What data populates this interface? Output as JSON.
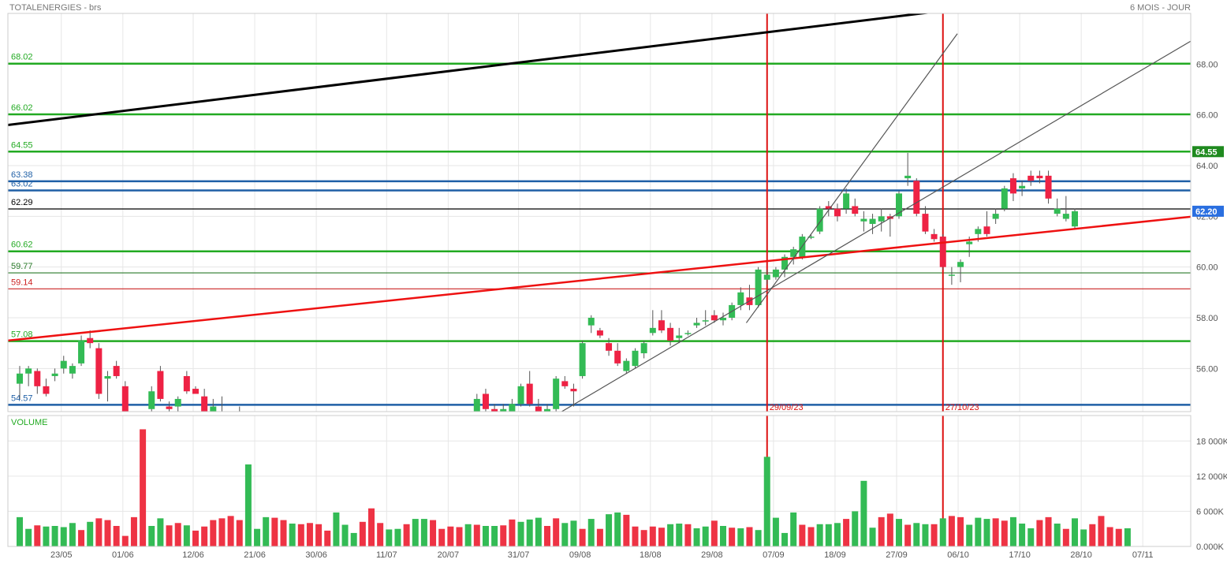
{
  "header": {
    "title": "TOTALENERGIES - brs",
    "period": "6 MOIS - JOUR"
  },
  "volume_panel": {
    "label": "VOLUME"
  },
  "chart_data": [
    {
      "type": "candlestick",
      "title": "TOTALENERGIES - brs",
      "ylim": [
        54.3,
        70.0
      ],
      "y_ticks": [
        "56.00",
        "58.00",
        "60.00",
        "62.00",
        "64.00",
        "66.00",
        "68.00"
      ],
      "x_ticks": [
        "23/05",
        "01/06",
        "12/06",
        "21/06",
        "30/06",
        "11/07",
        "20/07",
        "31/07",
        "09/08",
        "18/08",
        "29/08",
        "07/09",
        "18/09",
        "27/09",
        "06/10",
        "17/10",
        "28/10",
        "07/11"
      ],
      "current_price": "62.20",
      "current_price_value": 62.2,
      "highlight_price": "64.55",
      "highlight_price_value": 64.55,
      "levels": [
        {
          "label": "68.02",
          "value": 68.02,
          "color": "#22aa22"
        },
        {
          "label": "66.02",
          "value": 66.02,
          "color": "#22aa22"
        },
        {
          "label": "64.55",
          "value": 64.55,
          "color": "#22aa22"
        },
        {
          "label": "63.38",
          "value": 63.38,
          "color": "#1f5fa6"
        },
        {
          "label": "63.02",
          "value": 63.02,
          "color": "#1f5fa6"
        },
        {
          "label": "62.29",
          "value": 62.29,
          "color": "#000000"
        },
        {
          "label": "60.62",
          "value": 60.62,
          "color": "#22aa22"
        },
        {
          "label": "59.77",
          "value": 59.77,
          "color": "#2a7a2a"
        },
        {
          "label": "59.14",
          "value": 59.14,
          "color": "#cc2222"
        },
        {
          "label": "57.08",
          "value": 57.08,
          "color": "#22aa22"
        },
        {
          "label": "54.57",
          "value": 54.57,
          "color": "#1f5fa6"
        }
      ],
      "vertical_markers": [
        {
          "label": "29/09/23",
          "index": 85
        },
        {
          "label": "27/10/23",
          "index": 105
        }
      ],
      "trendlines": [
        {
          "color": "#000000",
          "width": 3,
          "from": [
            -1,
            65.6
          ],
          "to": [
            110,
            70.3
          ]
        },
        {
          "color": "#ee1111",
          "width": 2.5,
          "from": [
            -1,
            57.1
          ],
          "to": [
            134,
            62.0
          ]
        },
        {
          "color": "#555555",
          "width": 1.2,
          "from": [
            62,
            54.3
          ],
          "to": [
            134,
            69.0
          ]
        },
        {
          "color": "#555555",
          "width": 1.2,
          "from": [
            83,
            57.8
          ],
          "to": [
            107,
            69.2
          ]
        }
      ],
      "candles": [
        [
          0,
          55.4,
          56.1,
          54.8,
          55.8
        ],
        [
          1,
          55.8,
          56.1,
          55.3,
          56.0
        ],
        [
          2,
          55.9,
          56.0,
          55.0,
          55.3
        ],
        [
          3,
          55.3,
          55.6,
          54.9,
          55.0
        ],
        [
          4,
          55.7,
          56.0,
          55.5,
          55.8
        ],
        [
          5,
          56.0,
          56.5,
          55.8,
          56.3
        ],
        [
          6,
          55.8,
          56.2,
          55.6,
          56.1
        ],
        [
          7,
          56.2,
          57.3,
          56.1,
          57.1
        ],
        [
          8,
          57.2,
          57.5,
          56.8,
          57.0
        ],
        [
          9,
          56.8,
          57.0,
          54.8,
          55.0
        ],
        [
          10,
          55.6,
          55.9,
          54.7,
          55.7
        ],
        [
          11,
          56.1,
          56.3,
          55.6,
          55.7
        ],
        [
          12,
          55.3,
          55.5,
          53.8,
          54.0
        ],
        [
          15,
          54.4,
          55.3,
          54.3,
          55.1
        ],
        [
          16,
          55.9,
          56.1,
          54.7,
          54.8
        ],
        [
          17,
          54.5,
          54.7,
          54.3,
          54.4
        ],
        [
          18,
          54.5,
          54.9,
          54.2,
          54.8
        ],
        [
          19,
          55.7,
          55.9,
          55.0,
          55.1
        ],
        [
          20,
          55.2,
          55.3,
          55.0,
          55.0
        ],
        [
          21,
          54.9,
          55.2,
          54.2,
          54.3
        ],
        [
          22,
          54.3,
          54.8,
          54.1,
          54.5
        ],
        [
          23,
          54.2,
          54.9,
          54.0,
          54.3
        ],
        [
          25,
          54.0,
          54.5,
          53.9,
          54.2
        ],
        [
          52,
          54.3,
          55.0,
          54.2,
          54.8
        ],
        [
          53,
          55.0,
          55.2,
          54.3,
          54.4
        ],
        [
          54,
          54.4,
          54.6,
          54.2,
          54.3
        ],
        [
          55,
          54.3,
          54.6,
          54.2,
          54.4
        ],
        [
          56,
          54.3,
          54.8,
          54.1,
          54.6
        ],
        [
          57,
          54.6,
          55.4,
          54.5,
          55.3
        ],
        [
          58,
          55.4,
          55.9,
          54.5,
          54.6
        ],
        [
          59,
          54.5,
          54.8,
          54.1,
          54.3
        ],
        [
          60,
          54.3,
          54.6,
          54.1,
          54.4
        ],
        [
          61,
          54.4,
          55.7,
          54.3,
          55.6
        ],
        [
          62,
          55.5,
          55.7,
          55.2,
          55.3
        ],
        [
          63,
          55.2,
          55.4,
          54.5,
          55.1
        ],
        [
          64,
          55.7,
          57.1,
          55.6,
          57.0
        ],
        [
          65,
          57.7,
          58.1,
          57.4,
          58.0
        ],
        [
          66,
          57.5,
          57.6,
          57.2,
          57.3
        ],
        [
          67,
          57.0,
          57.2,
          56.5,
          56.7
        ],
        [
          68,
          56.7,
          57.0,
          56.1,
          56.2
        ],
        [
          69,
          55.9,
          56.4,
          55.8,
          56.3
        ],
        [
          70,
          56.1,
          56.8,
          56.0,
          56.7
        ],
        [
          71,
          56.6,
          57.1,
          56.4,
          57.0
        ],
        [
          72,
          57.4,
          58.3,
          57.3,
          57.6
        ],
        [
          73,
          57.9,
          58.3,
          57.4,
          57.5
        ],
        [
          74,
          57.6,
          57.8,
          56.9,
          57.1
        ],
        [
          75,
          57.2,
          57.6,
          57.0,
          57.3
        ],
        [
          76,
          57.4,
          57.5,
          57.3,
          57.4
        ],
        [
          77,
          57.7,
          58.0,
          57.6,
          57.8
        ],
        [
          78,
          57.9,
          58.3,
          57.7,
          57.9
        ],
        [
          79,
          58.1,
          58.3,
          57.8,
          57.9
        ],
        [
          80,
          57.9,
          58.2,
          57.7,
          58.0
        ],
        [
          81,
          58.0,
          58.6,
          57.9,
          58.5
        ],
        [
          82,
          58.5,
          59.2,
          58.3,
          59.0
        ],
        [
          83,
          58.8,
          59.3,
          58.3,
          58.5
        ],
        [
          84,
          58.5,
          60.0,
          58.4,
          59.9
        ],
        [
          85,
          59.5,
          59.9,
          59.3,
          59.7
        ],
        [
          86,
          59.6,
          60.0,
          59.5,
          59.9
        ],
        [
          87,
          59.9,
          60.5,
          59.6,
          60.4
        ],
        [
          88,
          60.4,
          60.8,
          60.1,
          60.7
        ],
        [
          89,
          60.4,
          61.3,
          60.3,
          61.2
        ],
        [
          90,
          61.2,
          61.3,
          61.1,
          61.2
        ],
        [
          91,
          61.4,
          62.4,
          61.3,
          62.3
        ],
        [
          92,
          62.4,
          62.6,
          62.0,
          62.3
        ],
        [
          93,
          62.3,
          62.5,
          61.8,
          62.0
        ],
        [
          94,
          62.3,
          63.1,
          62.1,
          62.9
        ],
        [
          95,
          62.4,
          62.7,
          62.0,
          62.1
        ],
        [
          96,
          61.8,
          62.2,
          61.4,
          61.9
        ],
        [
          97,
          61.7,
          62.1,
          61.3,
          61.9
        ],
        [
          98,
          61.8,
          62.3,
          61.4,
          62.0
        ],
        [
          99,
          62.0,
          62.1,
          61.2,
          61.9
        ],
        [
          100,
          62.0,
          63.0,
          61.9,
          62.9
        ],
        [
          101,
          63.5,
          64.5,
          63.2,
          63.6
        ],
        [
          102,
          63.4,
          63.5,
          62.0,
          62.1
        ],
        [
          103,
          62.1,
          62.4,
          61.3,
          61.4
        ],
        [
          104,
          61.3,
          61.5,
          61.0,
          61.1
        ],
        [
          105,
          61.2,
          61.3,
          59.9,
          60.0
        ],
        [
          106,
          59.7,
          60.0,
          59.3,
          59.7
        ],
        [
          107,
          60.0,
          60.3,
          59.4,
          60.2
        ],
        [
          108,
          60.9,
          61.2,
          60.4,
          61.0
        ],
        [
          109,
          61.3,
          61.6,
          61.0,
          61.5
        ],
        [
          110,
          61.6,
          62.2,
          61.2,
          61.3
        ],
        [
          111,
          61.9,
          62.3,
          61.7,
          62.1
        ],
        [
          112,
          62.3,
          63.2,
          62.2,
          63.1
        ],
        [
          113,
          63.5,
          63.7,
          62.6,
          62.9
        ],
        [
          114,
          63.1,
          63.4,
          62.8,
          63.2
        ],
        [
          115,
          63.6,
          63.8,
          63.2,
          63.4
        ],
        [
          116,
          63.6,
          63.8,
          63.3,
          63.5
        ],
        [
          117,
          63.6,
          63.8,
          62.5,
          62.7
        ],
        [
          118,
          62.1,
          62.7,
          62.0,
          62.3
        ],
        [
          119,
          61.9,
          62.8,
          61.8,
          62.1
        ],
        [
          120,
          61.6,
          62.3,
          61.5,
          62.2
        ]
      ]
    },
    {
      "type": "bar",
      "title": "VOLUME",
      "ylim": [
        0,
        21000
      ],
      "y_ticks": [
        "18 000K",
        "12 000K",
        "6 000K",
        "0.000K"
      ],
      "values": [
        [
          5000,
          1
        ],
        [
          3000,
          1
        ],
        [
          3600,
          0
        ],
        [
          3400,
          1
        ],
        [
          3500,
          1
        ],
        [
          3300,
          1
        ],
        [
          4000,
          1
        ],
        [
          2800,
          0
        ],
        [
          4200,
          1
        ],
        [
          4800,
          0
        ],
        [
          4500,
          0
        ],
        [
          3500,
          0
        ],
        [
          1800,
          0
        ],
        [
          5000,
          0
        ],
        [
          20000,
          0
        ],
        [
          3500,
          1
        ],
        [
          4800,
          1
        ],
        [
          3600,
          0
        ],
        [
          4000,
          0
        ],
        [
          3600,
          1
        ],
        [
          2700,
          0
        ],
        [
          3400,
          0
        ],
        [
          4500,
          0
        ],
        [
          4800,
          0
        ],
        [
          5200,
          0
        ],
        [
          4500,
          0
        ],
        [
          14000,
          1
        ],
        [
          3000,
          1
        ],
        [
          5000,
          1
        ],
        [
          4900,
          0
        ],
        [
          4500,
          0
        ],
        [
          3900,
          1
        ],
        [
          3800,
          0
        ],
        [
          4000,
          0
        ],
        [
          3800,
          0
        ],
        [
          2700,
          0
        ],
        [
          5800,
          1
        ],
        [
          3700,
          1
        ],
        [
          2300,
          1
        ],
        [
          4200,
          0
        ],
        [
          6500,
          0
        ],
        [
          4000,
          0
        ],
        [
          2900,
          1
        ],
        [
          3000,
          1
        ],
        [
          3800,
          0
        ],
        [
          4700,
          1
        ],
        [
          4700,
          1
        ],
        [
          4500,
          0
        ],
        [
          3000,
          0
        ],
        [
          3400,
          0
        ],
        [
          3300,
          0
        ],
        [
          3800,
          1
        ],
        [
          3700,
          0
        ],
        [
          3500,
          1
        ],
        [
          3500,
          1
        ],
        [
          3600,
          0
        ],
        [
          4600,
          0
        ],
        [
          4200,
          1
        ],
        [
          4600,
          1
        ],
        [
          4900,
          1
        ],
        [
          3500,
          0
        ],
        [
          4800,
          0
        ],
        [
          4000,
          1
        ],
        [
          4400,
          1
        ],
        [
          3000,
          0
        ],
        [
          4700,
          1
        ],
        [
          3000,
          0
        ],
        [
          5500,
          1
        ],
        [
          5800,
          1
        ],
        [
          5400,
          0
        ],
        [
          3400,
          0
        ],
        [
          2800,
          0
        ],
        [
          3400,
          0
        ],
        [
          3200,
          0
        ],
        [
          3800,
          1
        ],
        [
          3900,
          1
        ],
        [
          3800,
          0
        ],
        [
          3100,
          1
        ],
        [
          3400,
          1
        ],
        [
          4400,
          0
        ],
        [
          3500,
          1
        ],
        [
          3200,
          0
        ],
        [
          3100,
          1
        ],
        [
          3300,
          0
        ],
        [
          2800,
          1
        ],
        [
          15300,
          1
        ],
        [
          4900,
          1
        ],
        [
          2300,
          1
        ],
        [
          5800,
          1
        ],
        [
          3700,
          0
        ],
        [
          3300,
          0
        ],
        [
          3800,
          1
        ],
        [
          3800,
          1
        ],
        [
          4000,
          1
        ],
        [
          4700,
          0
        ],
        [
          6000,
          1
        ],
        [
          11200,
          1
        ],
        [
          3200,
          1
        ],
        [
          5000,
          0
        ],
        [
          5600,
          0
        ],
        [
          4700,
          1
        ],
        [
          3700,
          0
        ],
        [
          4000,
          1
        ],
        [
          3800,
          1
        ],
        [
          3800,
          0
        ],
        [
          4800,
          1
        ],
        [
          5200,
          0
        ],
        [
          5000,
          0
        ],
        [
          3700,
          1
        ],
        [
          4900,
          1
        ],
        [
          4700,
          1
        ],
        [
          4800,
          0
        ],
        [
          4400,
          0
        ],
        [
          5000,
          1
        ],
        [
          3900,
          1
        ],
        [
          3100,
          1
        ],
        [
          4500,
          0
        ],
        [
          5000,
          0
        ],
        [
          3900,
          1
        ],
        [
          3000,
          0
        ],
        [
          4800,
          1
        ],
        [
          2900,
          1
        ],
        [
          3800,
          0
        ],
        [
          5200,
          0
        ],
        [
          3300,
          0
        ],
        [
          3000,
          0
        ],
        [
          3100,
          1
        ]
      ]
    }
  ]
}
